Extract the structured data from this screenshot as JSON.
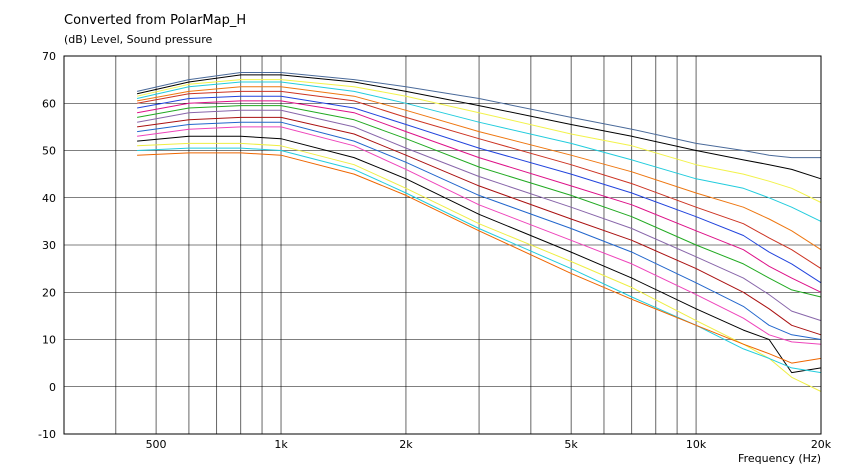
{
  "chart_data": {
    "type": "line",
    "title": "Converted from PolarMap_H",
    "ylabel": "(dB)  Level, Sound pressure",
    "xlabel": "Frequency  (Hz)",
    "x_scale": "log",
    "xlim": [
      300,
      20000
    ],
    "ylim": [
      -10,
      70
    ],
    "grid": true,
    "x_ticks": [
      {
        "value": 500,
        "label": "500"
      },
      {
        "value": 1000,
        "label": "1k"
      },
      {
        "value": 2000,
        "label": "2k"
      },
      {
        "value": 5000,
        "label": "5k"
      },
      {
        "value": 10000,
        "label": "10k"
      },
      {
        "value": 20000,
        "label": "20k"
      }
    ],
    "y_ticks": [
      -10,
      0,
      10,
      20,
      30,
      40,
      50,
      60,
      70
    ],
    "x": [
      450,
      600,
      800,
      1000,
      1500,
      2000,
      3000,
      5000,
      7000,
      10000,
      13000,
      15000,
      17000,
      20000
    ],
    "series": [
      {
        "color": "#4a6a9a",
        "values": [
          62.5,
          65,
          66.5,
          66.5,
          65,
          63.5,
          61,
          57,
          54.5,
          51.5,
          50,
          49,
          48.5,
          48.5
        ]
      },
      {
        "color": "#000000",
        "values": [
          62,
          64.5,
          66,
          66,
          64.5,
          62.5,
          59.5,
          55.5,
          53,
          50,
          48,
          47,
          46,
          44
        ]
      },
      {
        "color": "#f2f24a",
        "values": [
          61.5,
          64,
          65,
          65,
          63.5,
          61.5,
          58,
          53.5,
          51,
          47,
          45,
          43.5,
          42,
          39
        ]
      },
      {
        "color": "#22ccdd",
        "values": [
          61,
          63.5,
          64.5,
          64.5,
          62.5,
          60,
          56,
          51.5,
          48,
          44,
          42,
          40,
          38,
          35
        ]
      },
      {
        "color": "#ee7711",
        "values": [
          60.5,
          62.5,
          63.5,
          63.5,
          61.5,
          58.5,
          54,
          49,
          45.5,
          41,
          38,
          35.5,
          33,
          29
        ]
      },
      {
        "color": "#cc3322",
        "values": [
          60,
          62,
          62.5,
          62.5,
          60.5,
          57,
          52.5,
          47,
          43,
          38,
          34.5,
          31.5,
          29,
          25
        ]
      },
      {
        "color": "#2244dd",
        "values": [
          59,
          61,
          61.5,
          61.5,
          59,
          55.5,
          50.5,
          45,
          41,
          36,
          32,
          28.5,
          26,
          22
        ]
      },
      {
        "color": "#dd1188",
        "values": [
          58,
          60,
          60.5,
          60.5,
          58,
          54,
          48.5,
          42.5,
          38.5,
          33,
          29,
          25.5,
          23,
          20
        ]
      },
      {
        "color": "#22aa22",
        "values": [
          57,
          59,
          59.5,
          59.5,
          56.5,
          52.5,
          46.5,
          40.5,
          36,
          30,
          26,
          23,
          20.5,
          19
        ]
      },
      {
        "color": "#8866aa",
        "values": [
          56,
          58,
          58.5,
          58.5,
          55,
          50.5,
          44.5,
          38,
          33.5,
          27.5,
          23,
          19.5,
          16,
          14
        ]
      },
      {
        "color": "#aa1111",
        "values": [
          55,
          56.5,
          57,
          57,
          53.5,
          49,
          42.5,
          35.5,
          31,
          25,
          20,
          16.5,
          13,
          11
        ]
      },
      {
        "color": "#2266cc",
        "values": [
          54,
          55.5,
          56,
          56,
          52,
          47.5,
          40.5,
          33.5,
          28.5,
          22,
          17,
          13,
          11,
          10
        ]
      },
      {
        "color": "#ee44bb",
        "values": [
          53,
          54.5,
          55,
          55,
          51,
          46,
          38.5,
          31,
          26,
          19.5,
          14.5,
          11,
          9.5,
          9
        ]
      },
      {
        "color": "#000000",
        "values": [
          52,
          53,
          53,
          52.5,
          48.5,
          44,
          36.5,
          28.5,
          23,
          16.5,
          12,
          10,
          3,
          4
        ]
      },
      {
        "color": "#eeee44",
        "values": [
          51,
          51.5,
          51.5,
          51,
          47,
          42,
          34.5,
          26.5,
          21,
          14,
          9,
          6,
          2,
          -1
        ]
      },
      {
        "color": "#22ccdd",
        "values": [
          50,
          50.5,
          50.5,
          50,
          46,
          41,
          33.5,
          25,
          19,
          13,
          8,
          6,
          4,
          3
        ]
      },
      {
        "color": "#ee6600",
        "values": [
          49,
          49.5,
          49.5,
          49,
          45,
          40.5,
          33,
          24,
          18.5,
          13,
          9,
          7,
          5,
          6
        ]
      }
    ]
  }
}
